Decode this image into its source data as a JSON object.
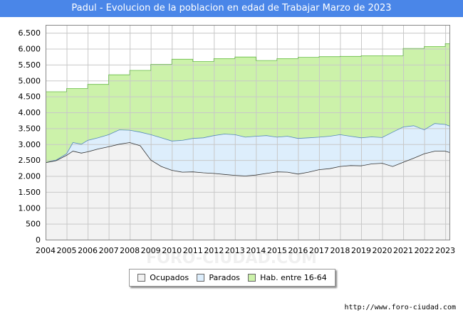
{
  "title": "Padul - Evolucion de la poblacion en edad de Trabajar Marzo de 2023",
  "source": "http://www.foro-ciudad.com",
  "watermark": "FORO-CIUDAD.COM",
  "colors": {
    "title_bg": "#4a86e8",
    "hab_fill": "#ccf2aa",
    "hab_line": "#66bb44",
    "parados_fill": "#ddeefc",
    "parados_line": "#5588bb",
    "ocupados_fill": "#f2f2f2",
    "ocupados_line": "#333333"
  },
  "chart_data": {
    "type": "area",
    "title": "Padul - Evolucion de la poblacion en edad de Trabajar Marzo de 2023",
    "xlim": [
      2004,
      2023.2
    ],
    "ylim": [
      0,
      6750
    ],
    "yticks": [
      0,
      500,
      1000,
      1500,
      2000,
      2500,
      3000,
      3500,
      4000,
      4500,
      5000,
      5500,
      6000,
      6500
    ],
    "ytick_labels": [
      "0",
      "500",
      "1.000",
      "1.500",
      "2.000",
      "2.500",
      "3.000",
      "3.500",
      "4.000",
      "4.500",
      "5.000",
      "5.500",
      "6.000",
      "6.500"
    ],
    "xticks": [
      2004,
      2005,
      2006,
      2007,
      2008,
      2009,
      2010,
      2011,
      2012,
      2013,
      2014,
      2015,
      2016,
      2017,
      2018,
      2019,
      2020,
      2021,
      2022,
      2023
    ],
    "xtick_labels": [
      "2004",
      "2005",
      "2006",
      "2007",
      "2008",
      "2009",
      "2010",
      "2011",
      "2012",
      "2013",
      "2014",
      "2015",
      "2016",
      "2017",
      "2018",
      "2019",
      "2020",
      "2021",
      "2022",
      "2023"
    ],
    "grid": true,
    "legend_position": "bottom-center",
    "series": [
      {
        "name": "Hab. entre 16-64",
        "step": true,
        "x": [
          2004,
          2005,
          2006,
          2007,
          2008,
          2009,
          2010,
          2011,
          2012,
          2013,
          2014,
          2015,
          2016,
          2017,
          2018,
          2019,
          2020,
          2021,
          2022,
          2023,
          2023.2
        ],
        "values": [
          4650,
          4750,
          4880,
          5180,
          5320,
          5510,
          5670,
          5600,
          5690,
          5740,
          5630,
          5690,
          5730,
          5750,
          5760,
          5780,
          5780,
          6010,
          6070,
          6160,
          6160
        ]
      },
      {
        "name": "Parados",
        "step": false,
        "x": [
          2004,
          2004.5,
          2005,
          2005.3,
          2005.7,
          2006,
          2006.5,
          2007,
          2007.5,
          2008,
          2008.5,
          2009,
          2009.5,
          2010,
          2010.5,
          2011,
          2011.5,
          2012,
          2012.5,
          2013,
          2013.5,
          2014,
          2014.5,
          2015,
          2015.5,
          2016,
          2016.5,
          2017,
          2017.5,
          2018,
          2018.5,
          2019,
          2019.5,
          2020,
          2020.5,
          2021,
          2021.5,
          2022,
          2022.5,
          2023,
          2023.2
        ],
        "values": [
          2420,
          2500,
          2700,
          3050,
          3000,
          3120,
          3200,
          3300,
          3450,
          3440,
          3380,
          3300,
          3200,
          3100,
          3120,
          3180,
          3200,
          3270,
          3320,
          3300,
          3220,
          3250,
          3270,
          3220,
          3250,
          3180,
          3200,
          3220,
          3250,
          3300,
          3250,
          3200,
          3230,
          3210,
          3380,
          3540,
          3580,
          3450,
          3650,
          3620,
          3570
        ]
      },
      {
        "name": "Ocupados",
        "step": false,
        "x": [
          2004,
          2004.5,
          2005,
          2005.3,
          2005.7,
          2006,
          2006.5,
          2007,
          2007.5,
          2008,
          2008.5,
          2009,
          2009.5,
          2010,
          2010.5,
          2011,
          2011.5,
          2012,
          2012.5,
          2013,
          2013.5,
          2014,
          2014.5,
          2015,
          2015.5,
          2016,
          2016.5,
          2017,
          2017.5,
          2018,
          2018.5,
          2019,
          2019.5,
          2020,
          2020.5,
          2021,
          2021.5,
          2022,
          2022.5,
          2023,
          2023.2
        ],
        "values": [
          2420,
          2480,
          2650,
          2780,
          2720,
          2760,
          2850,
          2920,
          3000,
          3050,
          2950,
          2500,
          2300,
          2180,
          2120,
          2130,
          2100,
          2080,
          2050,
          2020,
          2000,
          2030,
          2080,
          2130,
          2120,
          2060,
          2120,
          2200,
          2230,
          2300,
          2330,
          2320,
          2380,
          2400,
          2300,
          2430,
          2560,
          2700,
          2780,
          2780,
          2740
        ]
      }
    ]
  },
  "legend": {
    "items": [
      {
        "label": "Ocupados",
        "color": "#f2f2f2"
      },
      {
        "label": "Parados",
        "color": "#ddeefc"
      },
      {
        "label": "Hab. entre 16-64",
        "color": "#ccf2aa"
      }
    ]
  }
}
